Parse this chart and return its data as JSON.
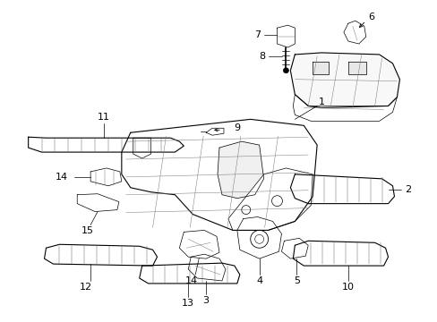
{
  "bg_color": "#ffffff",
  "line_color": "#000000",
  "fig_width": 4.89,
  "fig_height": 3.6,
  "dpi": 100,
  "label_fontsize": 7.5
}
